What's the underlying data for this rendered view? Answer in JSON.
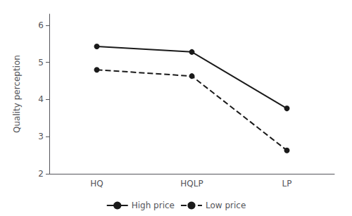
{
  "chart_data": {
    "type": "line",
    "categories": [
      "HQ",
      "HQLP",
      "LP"
    ],
    "series": [
      {
        "name": "High price",
        "color": "#1a1a1a",
        "values": [
          5.43,
          5.28,
          3.76
        ],
        "line_style": "solid",
        "marker": "circle"
      },
      {
        "name": "Low price",
        "color": "#1a1a1a",
        "values": [
          4.8,
          4.63,
          2.63
        ],
        "line_style": "dashed",
        "marker": "circle"
      }
    ],
    "ylabel": "Quality perception",
    "ylim": [
      2,
      6.3
    ],
    "yticks": [
      2,
      3,
      4,
      5,
      6
    ],
    "grid": false,
    "legend": "bottom"
  }
}
